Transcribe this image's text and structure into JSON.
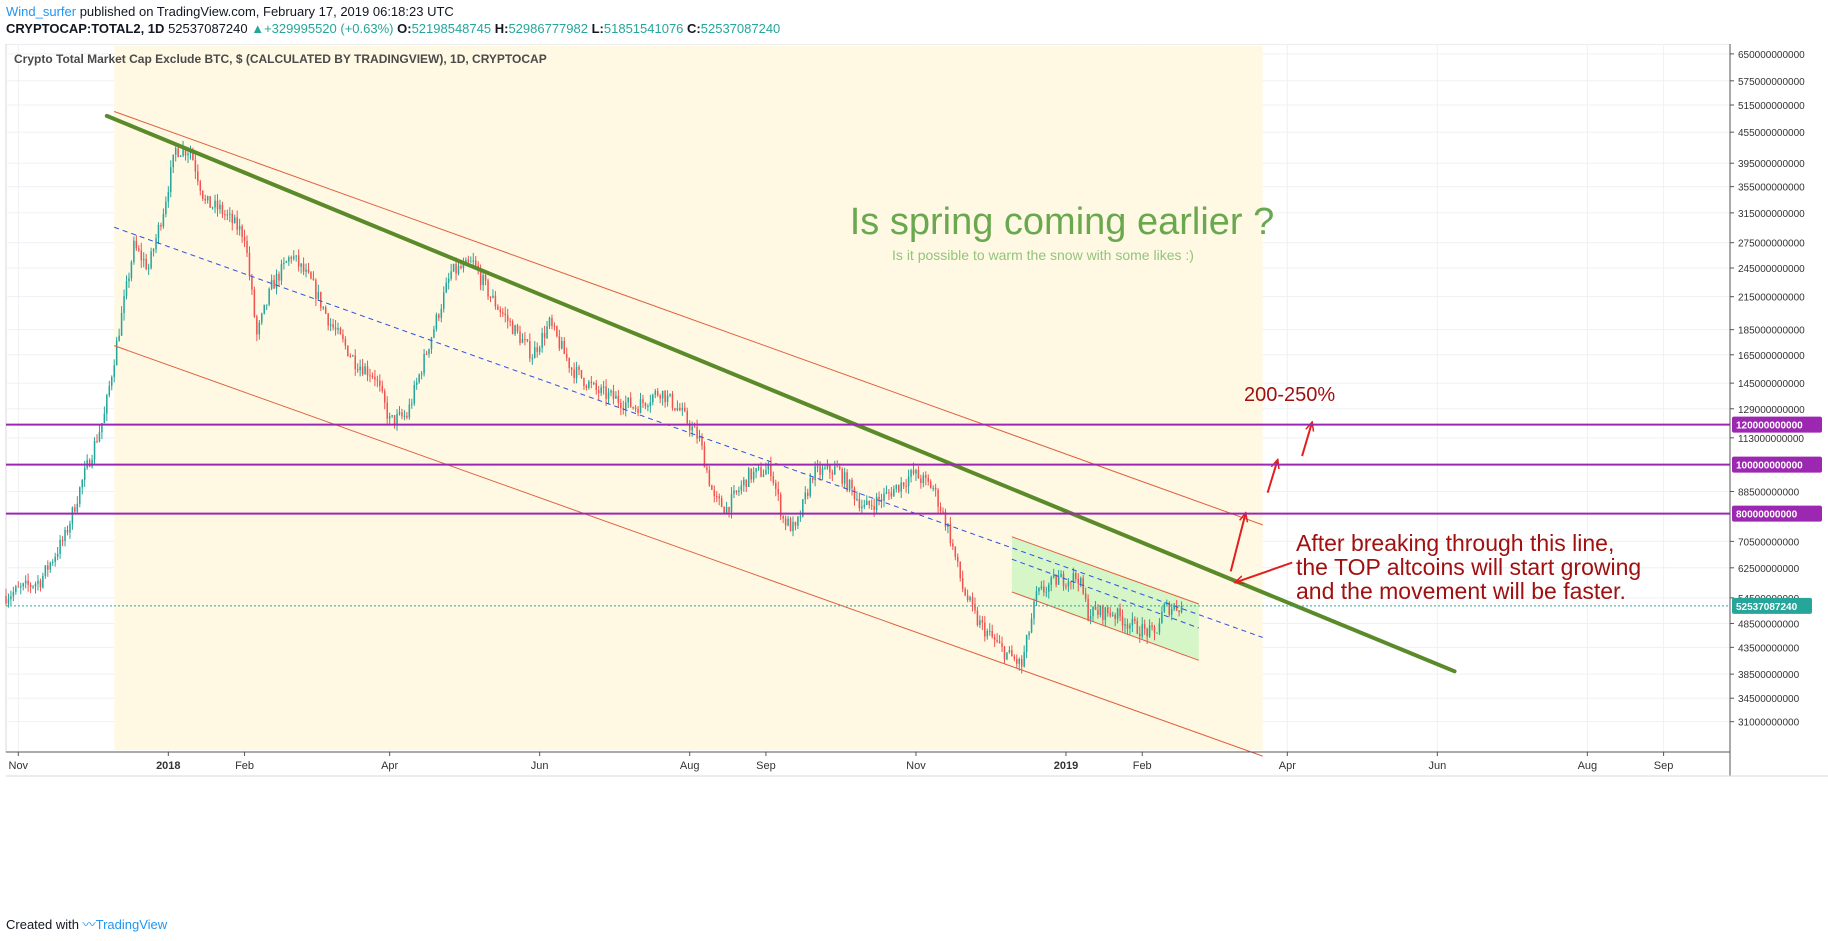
{
  "header": {
    "username": "Wind_surfer",
    "published_text": " published on TradingView.com, February 17, 2019 06:18:23 UTC",
    "symbol": "CRYPTOCAP:TOTAL2, 1D",
    "last_price": "52537087240",
    "change_arrow": "▲",
    "change": "+329995520 (+0.63%)",
    "o_label": "O:",
    "o_value": "52198548745",
    "h_label": "H:",
    "h_value": "52986777982",
    "l_label": "L:",
    "l_value": "51851541076",
    "c_label": "C:",
    "c_value": "52537087240"
  },
  "footer": {
    "created_with": "Created with",
    "brand": "TradingView"
  },
  "colors": {
    "up": "#26a69a",
    "down": "#ef5350",
    "trendline": "#5a8a2a",
    "channel_line": "#e06040",
    "channel_fill": "#fff8e1",
    "small_channel_fill": "#ccf5c0",
    "level_line": "#9c27b0",
    "level_tag": "#9c27b0",
    "arrow": "#e02020",
    "annotation_text": "#a01010",
    "spring_title": "#6aa84f",
    "spring_subtitle": "#93c47d",
    "grid": "#eef0f4",
    "axis": "#555555",
    "price_line": "#26a69a"
  },
  "chart_data": {
    "type": "candlestick",
    "title": "Crypto Total Market Cap Exclude BTC, $ (CALCULATED BY TRADINGVIEW), 1D, CRYPTOCAP",
    "y_scale": "log",
    "ylim": [
      27000000000,
      680000000000
    ],
    "y_ticks": [
      "650000000000",
      "575000000000",
      "515000000000",
      "455000000000",
      "395000000000",
      "355000000000",
      "315000000000",
      "275000000000",
      "245000000000",
      "215000000000",
      "185000000000",
      "165000000000",
      "145000000000",
      "129000000000",
      "113000000000",
      "88500000000",
      "70500000000",
      "62500000000",
      "54500000000",
      "48500000000",
      "43500000000",
      "38500000000",
      "34500000000",
      "31000000000"
    ],
    "y_tick_values": [
      650000000000,
      575000000000,
      515000000000,
      455000000000,
      395000000000,
      355000000000,
      315000000000,
      275000000000,
      245000000000,
      215000000000,
      185000000000,
      165000000000,
      145000000000,
      129000000000,
      113000000000,
      88500000000,
      70500000000,
      62500000000,
      54500000000,
      48500000000,
      43500000000,
      38500000000,
      34500000000,
      31000000000
    ],
    "xlim": [
      "2017-10-27",
      "2019-09-28"
    ],
    "x_ticks": [
      {
        "label": "Nov",
        "date": "2017-11-01",
        "bold": false
      },
      {
        "label": "2018",
        "date": "2018-01-01",
        "bold": true
      },
      {
        "label": "Feb",
        "date": "2018-02-01",
        "bold": false
      },
      {
        "label": "Apr",
        "date": "2018-04-01",
        "bold": false
      },
      {
        "label": "Jun",
        "date": "2018-06-01",
        "bold": false
      },
      {
        "label": "Aug",
        "date": "2018-08-01",
        "bold": false
      },
      {
        "label": "Sep",
        "date": "2018-09-01",
        "bold": false
      },
      {
        "label": "Nov",
        "date": "2018-11-01",
        "bold": false
      },
      {
        "label": "2019",
        "date": "2019-01-01",
        "bold": true
      },
      {
        "label": "Feb",
        "date": "2019-02-01",
        "bold": false
      },
      {
        "label": "Apr",
        "date": "2019-04-01",
        "bold": false
      },
      {
        "label": "Jun",
        "date": "2019-06-01",
        "bold": false
      },
      {
        "label": "Aug",
        "date": "2019-08-01",
        "bold": false
      },
      {
        "label": "Sep",
        "date": "2019-09-01",
        "bold": false
      }
    ],
    "price_path": [
      [
        "2017-10-27",
        55000000000
      ],
      [
        "2017-11-10",
        59000000000
      ],
      [
        "2017-11-20",
        72000000000
      ],
      [
        "2017-11-28",
        96000000000
      ],
      [
        "2017-12-06",
        125000000000
      ],
      [
        "2017-12-12",
        185000000000
      ],
      [
        "2017-12-18",
        270000000000
      ],
      [
        "2017-12-24",
        245000000000
      ],
      [
        "2017-12-30",
        320000000000
      ],
      [
        "2018-01-04",
        420000000000
      ],
      [
        "2018-01-10",
        420000000000
      ],
      [
        "2018-01-16",
        330000000000
      ],
      [
        "2018-01-22",
        320000000000
      ],
      [
        "2018-02-01",
        285000000000
      ],
      [
        "2018-02-06",
        180000000000
      ],
      [
        "2018-02-12",
        225000000000
      ],
      [
        "2018-02-20",
        260000000000
      ],
      [
        "2018-02-28",
        230000000000
      ],
      [
        "2018-03-08",
        190000000000
      ],
      [
        "2018-03-18",
        160000000000
      ],
      [
        "2018-03-26",
        150000000000
      ],
      [
        "2018-04-01",
        122000000000
      ],
      [
        "2018-04-08",
        125000000000
      ],
      [
        "2018-04-18",
        180000000000
      ],
      [
        "2018-04-26",
        240000000000
      ],
      [
        "2018-05-05",
        250000000000
      ],
      [
        "2018-05-12",
        215000000000
      ],
      [
        "2018-05-20",
        190000000000
      ],
      [
        "2018-05-29",
        165000000000
      ],
      [
        "2018-06-05",
        190000000000
      ],
      [
        "2018-06-14",
        155000000000
      ],
      [
        "2018-06-24",
        140000000000
      ],
      [
        "2018-07-02",
        135000000000
      ],
      [
        "2018-07-10",
        130000000000
      ],
      [
        "2018-07-20",
        140000000000
      ],
      [
        "2018-07-28",
        128000000000
      ],
      [
        "2018-08-05",
        112000000000
      ],
      [
        "2018-08-11",
        85000000000
      ],
      [
        "2018-08-16",
        82000000000
      ],
      [
        "2018-08-25",
        95000000000
      ],
      [
        "2018-09-03",
        98000000000
      ],
      [
        "2018-09-08",
        78000000000
      ],
      [
        "2018-09-13",
        74000000000
      ],
      [
        "2018-09-20",
        96000000000
      ],
      [
        "2018-09-30",
        98000000000
      ],
      [
        "2018-10-11",
        82000000000
      ],
      [
        "2018-10-20",
        87000000000
      ],
      [
        "2018-10-31",
        96000000000
      ],
      [
        "2018-11-08",
        90000000000
      ],
      [
        "2018-11-14",
        75000000000
      ],
      [
        "2018-11-20",
        57000000000
      ],
      [
        "2018-11-26",
        49000000000
      ],
      [
        "2018-12-06",
        43000000000
      ],
      [
        "2018-12-14",
        40000000000
      ],
      [
        "2018-12-20",
        55000000000
      ],
      [
        "2018-12-28",
        59000000000
      ],
      [
        "2019-01-06",
        60000000000
      ],
      [
        "2019-01-10",
        51000000000
      ],
      [
        "2019-01-20",
        51000000000
      ],
      [
        "2019-01-28",
        48000000000
      ],
      [
        "2019-02-06",
        46000000000
      ],
      [
        "2019-02-10",
        52000000000
      ],
      [
        "2019-02-17",
        52537087240
      ]
    ],
    "last_price": 52537087240,
    "last_price_label": "52537087240",
    "horizontal_levels": [
      {
        "value": 120000000000,
        "label": "120000000000"
      },
      {
        "value": 100000000000,
        "label": "100000000000"
      },
      {
        "value": 80000000000,
        "label": "80000000000"
      }
    ]
  },
  "drawings": {
    "main_trendline": {
      "from": [
        "2017-12-07",
        490000000000
      ],
      "to": [
        "2019-06-08",
        39000000000
      ]
    },
    "channel": {
      "start_date": "2017-12-10",
      "end_date": "2019-03-22",
      "upper": [
        500000000000,
        76000000000
      ],
      "mid": [
        295000000000,
        45500000000
      ],
      "lower": [
        172000000000,
        26500000000
      ]
    },
    "small_channel": {
      "start_date": "2018-12-10",
      "end_date": "2019-02-24",
      "upper": [
        72000000000,
        53000000000
      ],
      "mid": [
        65000000000,
        47500000000
      ],
      "lower": [
        56000000000,
        41000000000
      ]
    },
    "arrows": [
      {
        "from": [
          "2019-03-09",
          61500000000
        ],
        "to": [
          "2019-03-15",
          80000000000
        ]
      },
      {
        "from": [
          "2019-03-24",
          88000000000
        ],
        "to": [
          "2019-03-28",
          102000000000
        ]
      },
      {
        "from": [
          "2019-04-07",
          104000000000
        ],
        "to": [
          "2019-04-11",
          121000000000
        ]
      },
      {
        "from": [
          "2019-04-03",
          64000000000
        ],
        "to": [
          "2019-03-11",
          58500000000
        ]
      }
    ]
  },
  "annotations": {
    "spring_title": "Is spring coming earlier ?",
    "spring_subtitle": "Is it possible to warm the snow with some likes :)",
    "percent_label": "200-250%",
    "breakout_line1": "After breaking through this line,",
    "breakout_line2": "the TOP altcoins will start growing",
    "breakout_line3": "and the movement will be faster."
  }
}
